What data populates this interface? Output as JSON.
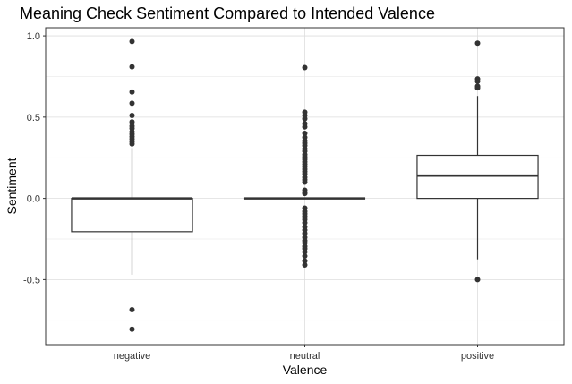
{
  "chart_data": {
    "type": "boxplot",
    "title": "Meaning Check Sentiment Compared to Intended Valence",
    "xlabel": "Valence",
    "ylabel": "Sentiment",
    "categories": [
      "negative",
      "neutral",
      "positive"
    ],
    "ylim": [
      -0.9,
      1.05
    ],
    "yticks": [
      -0.5,
      0.0,
      0.5,
      1.0
    ],
    "ytick_labels": [
      "-0.5",
      "0.0",
      "0.5",
      "1.0"
    ],
    "grid": true,
    "colors": {
      "box": "#333333",
      "panel_border": "#333333",
      "grid": "#dddddd",
      "outlier": "#333333"
    },
    "boxes": [
      {
        "category": "negative",
        "q1": -0.205,
        "median": 0.0,
        "q3": 0.0,
        "whisker_low": -0.47,
        "whisker_high": 0.31,
        "outliers": [
          0.965,
          0.81,
          0.655,
          0.585,
          0.51,
          0.47,
          0.445,
          0.43,
          0.41,
          0.395,
          0.38,
          0.365,
          0.35,
          0.335,
          -0.685,
          -0.805
        ]
      },
      {
        "category": "neutral",
        "q1": 0.0,
        "median": 0.0,
        "q3": 0.0,
        "whisker_low": 0.0,
        "whisker_high": 0.0,
        "outliers": [
          0.805,
          0.53,
          0.51,
          0.49,
          0.46,
          0.44,
          0.4,
          0.375,
          0.355,
          0.34,
          0.325,
          0.305,
          0.29,
          0.27,
          0.255,
          0.24,
          0.225,
          0.21,
          0.195,
          0.18,
          0.165,
          0.15,
          0.13,
          0.115,
          0.1,
          0.05,
          0.035,
          0.03,
          -0.06,
          -0.08,
          -0.095,
          -0.11,
          -0.13,
          -0.15,
          -0.175,
          -0.195,
          -0.215,
          -0.24,
          -0.26,
          -0.275,
          -0.295,
          -0.31,
          -0.33,
          -0.355,
          -0.385,
          -0.41
        ]
      },
      {
        "category": "positive",
        "q1": 0.0,
        "median": 0.14,
        "q3": 0.265,
        "whisker_low": -0.375,
        "whisker_high": 0.63,
        "outliers": [
          0.955,
          0.735,
          0.72,
          0.69,
          0.68,
          -0.5
        ]
      }
    ]
  }
}
